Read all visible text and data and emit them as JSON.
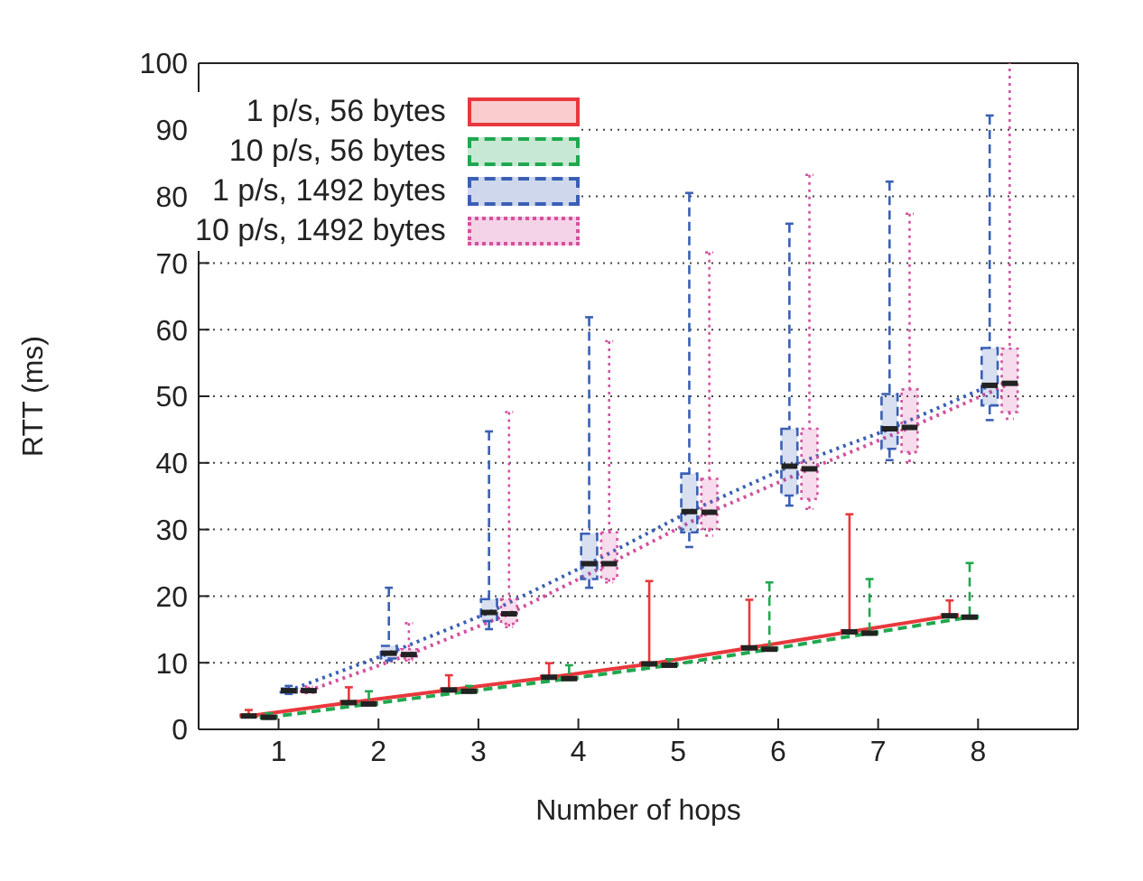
{
  "chart_data": {
    "type": "box",
    "xlabel": "Number of hops",
    "ylabel": "RTT (ms)",
    "categories": [
      "1",
      "2",
      "3",
      "4",
      "5",
      "6",
      "7",
      "8"
    ],
    "ylim": [
      0,
      100
    ],
    "yticks": [
      0,
      10,
      20,
      30,
      40,
      50,
      60,
      70,
      80,
      90,
      100
    ],
    "grid": "y",
    "legend": "top",
    "series": [
      {
        "name": "1 p/s, 56 bytes",
        "color": "#e8383d",
        "line_style": "solid",
        "boxes": [
          {
            "low": 1.8,
            "q1": 1.9,
            "median": 2.0,
            "q3": 2.2,
            "high": 2.9
          },
          {
            "low": 3.8,
            "q1": 3.9,
            "median": 4.0,
            "q3": 4.2,
            "high": 6.3
          },
          {
            "low": 5.7,
            "q1": 5.8,
            "median": 5.9,
            "q3": 6.1,
            "high": 8.1
          },
          {
            "low": 7.6,
            "q1": 7.7,
            "median": 7.8,
            "q3": 8.0,
            "high": 9.9
          },
          {
            "low": 9.6,
            "q1": 9.7,
            "median": 9.8,
            "q3": 10.0,
            "high": 22.2
          },
          {
            "low": 12.0,
            "q1": 12.1,
            "median": 12.2,
            "q3": 12.4,
            "high": 19.4
          },
          {
            "low": 14.4,
            "q1": 14.5,
            "median": 14.6,
            "q3": 14.8,
            "high": 32.2
          },
          {
            "low": 16.8,
            "q1": 16.9,
            "median": 17.0,
            "q3": 17.2,
            "high": 19.3
          }
        ]
      },
      {
        "name": "10 p/s, 56 bytes",
        "color": "#1fa84f",
        "line_style": "dashed",
        "boxes": [
          {
            "low": 1.6,
            "q1": 1.7,
            "median": 1.8,
            "q3": 2.0,
            "high": 2.4
          },
          {
            "low": 3.6,
            "q1": 3.7,
            "median": 3.8,
            "q3": 4.0,
            "high": 5.7
          },
          {
            "low": 5.5,
            "q1": 5.6,
            "median": 5.7,
            "q3": 5.9,
            "high": 6.5
          },
          {
            "low": 7.4,
            "q1": 7.5,
            "median": 7.6,
            "q3": 7.8,
            "high": 9.6
          },
          {
            "low": 9.4,
            "q1": 9.5,
            "median": 9.6,
            "q3": 9.8,
            "high": 10.5
          },
          {
            "low": 11.8,
            "q1": 11.9,
            "median": 12.0,
            "q3": 12.2,
            "high": 22.0
          },
          {
            "low": 14.2,
            "q1": 14.3,
            "median": 14.4,
            "q3": 14.6,
            "high": 22.5
          },
          {
            "low": 16.6,
            "q1": 16.7,
            "median": 16.8,
            "q3": 17.0,
            "high": 24.9
          }
        ]
      },
      {
        "name": "1 p/s, 1492 bytes",
        "color": "#3a5fb5",
        "line_style": "dashed",
        "boxes": [
          {
            "low": 5.3,
            "q1": 5.5,
            "median": 5.8,
            "q3": 6.1,
            "high": 6.5
          },
          {
            "low": 10.3,
            "q1": 10.6,
            "median": 11.4,
            "q3": 12.5,
            "high": 21.2
          },
          {
            "low": 15.0,
            "q1": 16.2,
            "median": 17.5,
            "q3": 19.5,
            "high": 44.6
          },
          {
            "low": 21.2,
            "q1": 22.5,
            "median": 24.8,
            "q3": 29.3,
            "high": 61.7
          },
          {
            "low": 27.3,
            "q1": 29.5,
            "median": 32.6,
            "q3": 38.3,
            "high": 80.3
          },
          {
            "low": 33.5,
            "q1": 35.0,
            "median": 39.4,
            "q3": 45.0,
            "high": 75.7
          },
          {
            "low": 40.3,
            "q1": 42.0,
            "median": 45.0,
            "q3": 50.2,
            "high": 82.0
          },
          {
            "low": 46.3,
            "q1": 48.5,
            "median": 51.5,
            "q3": 57.1,
            "high": 91.9
          }
        ]
      },
      {
        "name": "10 p/s, 1492 bytes",
        "color": "#d4509e",
        "line_style": "dotted",
        "boxes": [
          {
            "low": 5.4,
            "q1": 5.5,
            "median": 5.8,
            "q3": 6.1,
            "high": 6.4
          },
          {
            "low": 10.3,
            "q1": 10.6,
            "median": 11.2,
            "q3": 12.0,
            "high": 15.9
          },
          {
            "low": 15.3,
            "q1": 15.8,
            "median": 17.3,
            "q3": 19.5,
            "high": 47.5
          },
          {
            "low": 22.0,
            "q1": 22.5,
            "median": 24.8,
            "q3": 29.5,
            "high": 58.1
          },
          {
            "low": 29.0,
            "q1": 30.0,
            "median": 32.5,
            "q3": 37.5,
            "high": 71.4
          },
          {
            "low": 33.0,
            "q1": 34.5,
            "median": 39.0,
            "q3": 45.0,
            "high": 83.0
          },
          {
            "low": 40.0,
            "q1": 41.5,
            "median": 45.2,
            "q3": 50.9,
            "high": 77.2
          },
          {
            "low": 46.5,
            "q1": 47.5,
            "median": 51.8,
            "q3": 57.0,
            "high": 100
          }
        ]
      },
      {
        "type": "line",
        "color": "#e8383d",
        "line_style": "solid",
        "values": [
          2.0,
          4.0,
          5.9,
          7.8,
          9.8,
          12.2,
          14.6,
          17.0
        ]
      },
      {
        "type": "line",
        "color": "#1fa84f",
        "line_style": "dashed",
        "values": [
          1.8,
          3.8,
          5.7,
          7.6,
          9.6,
          12.0,
          14.4,
          16.8
        ]
      },
      {
        "type": "line",
        "color": "#3a5fb5",
        "line_style": "dotted",
        "values": [
          5.8,
          11.4,
          17.5,
          24.8,
          32.6,
          39.4,
          45.0,
          51.5
        ]
      },
      {
        "type": "line",
        "color": "#d4509e",
        "line_style": "dotted",
        "values": [
          5.8,
          11.2,
          17.3,
          24.8,
          32.5,
          39.0,
          45.2,
          51.8
        ]
      }
    ]
  }
}
